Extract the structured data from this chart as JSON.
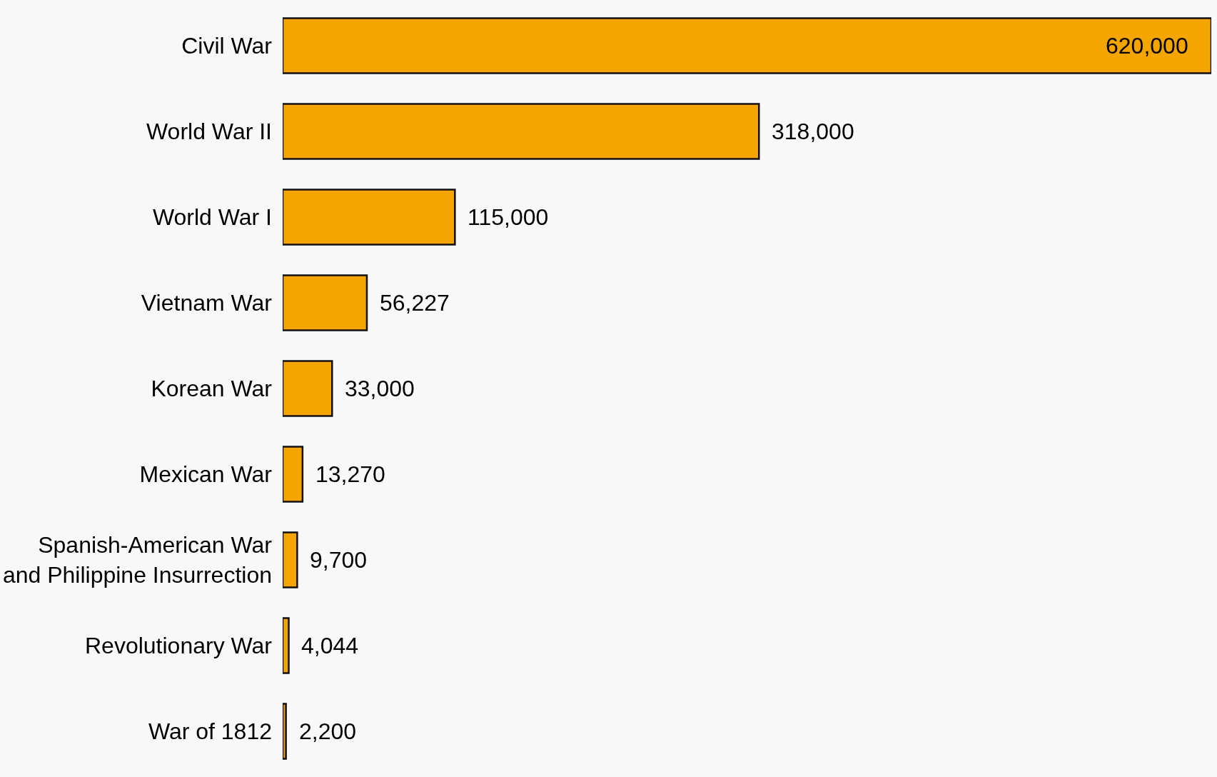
{
  "chart_data": {
    "type": "bar",
    "orientation": "horizontal",
    "categories": [
      "Civil War",
      "World War II",
      "World War I",
      "Vietnam War",
      "Korean War",
      "Mexican War",
      "Spanish-American War\nand Philippine Insurrection",
      "Revolutionary War",
      "War of 1812"
    ],
    "values": [
      620000,
      318000,
      115000,
      56227,
      33000,
      13270,
      9700,
      4044,
      2200
    ],
    "value_labels": [
      "620,000",
      "318,000",
      "115,000",
      "56,227",
      "33,000",
      "13,270",
      "9,700",
      "4,044",
      "2,200"
    ],
    "color": "#f5a500",
    "tick_labels": "y"
  }
}
